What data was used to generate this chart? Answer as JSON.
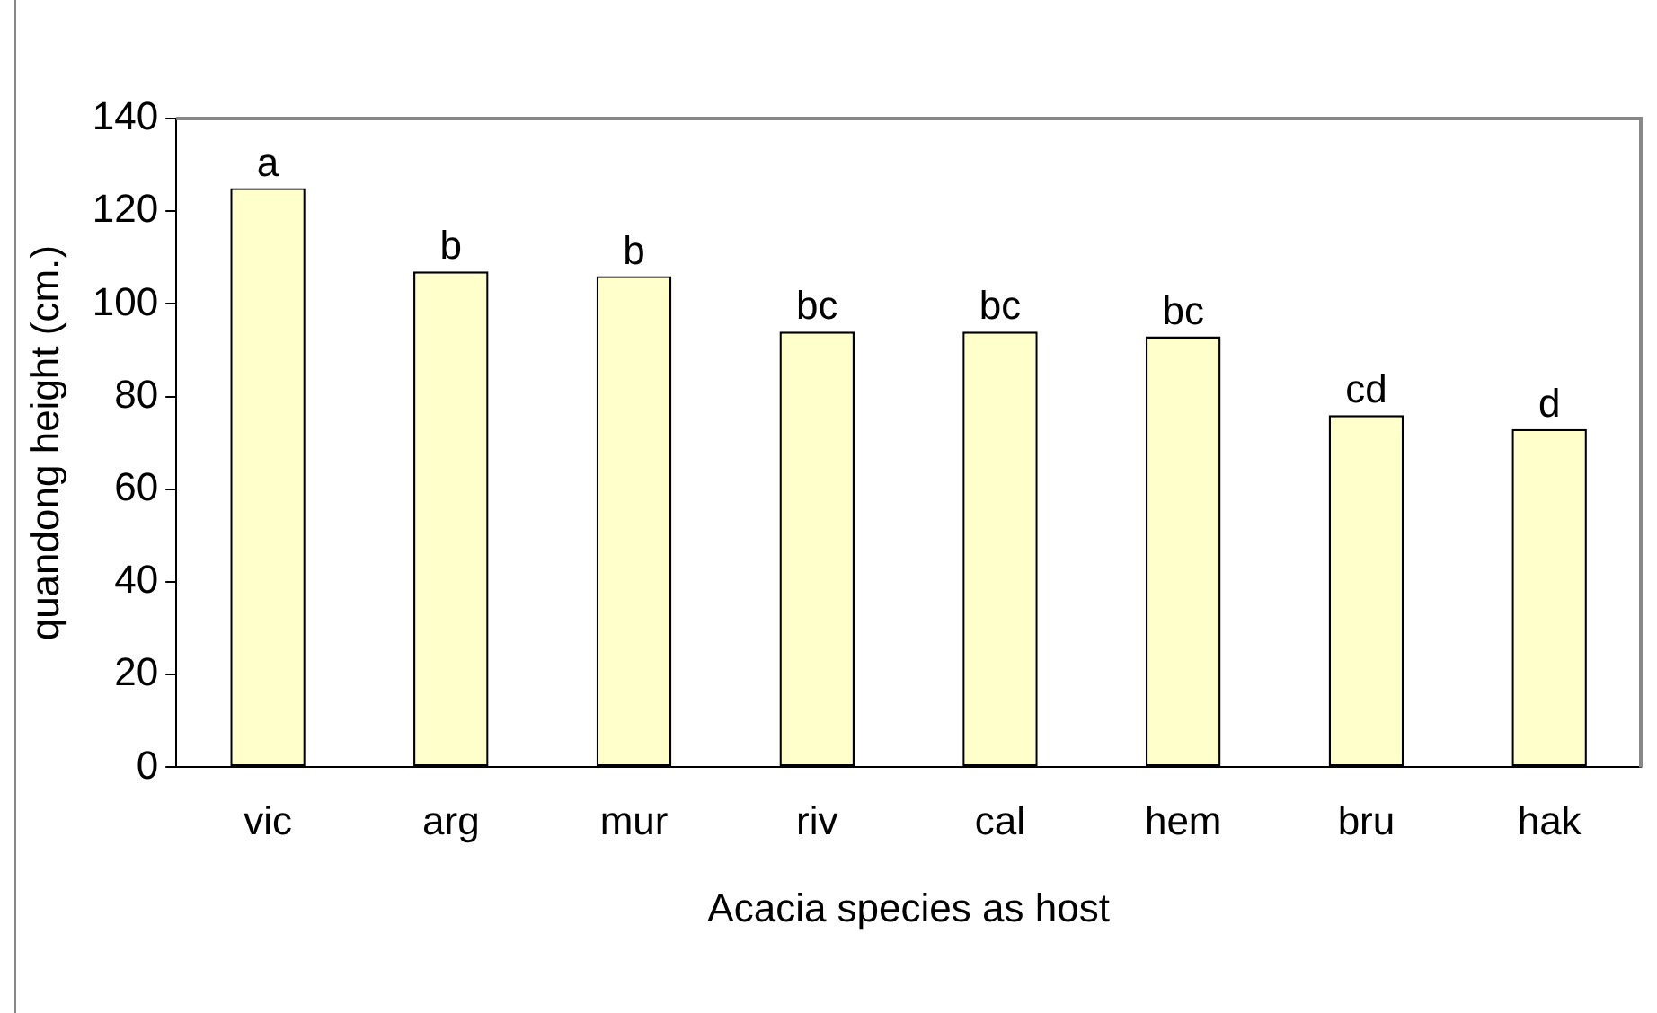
{
  "chart_data": {
    "type": "bar",
    "xlabel": "Acacia species as host",
    "ylabel": "quandong height (cm.)",
    "categories": [
      "vic",
      "arg",
      "mur",
      "riv",
      "cal",
      "hem",
      "bru",
      "hak"
    ],
    "values": [
      125,
      107,
      106,
      94,
      94,
      93,
      76,
      73
    ],
    "color": "#ffffcc",
    "ylim": [
      0,
      140
    ],
    "yticks": [
      0,
      20,
      40,
      60,
      80,
      100,
      120,
      140
    ],
    "grid": false,
    "legend": false,
    "annotations": [
      {
        "text": "a",
        "x": "vic",
        "y": 125
      },
      {
        "text": "b",
        "x": "arg",
        "y": 107
      },
      {
        "text": "b",
        "x": "mur",
        "y": 106
      },
      {
        "text": "bc",
        "x": "riv",
        "y": 94
      },
      {
        "text": "bc",
        "x": "cal",
        "y": 94
      },
      {
        "text": "bc",
        "x": "hem",
        "y": 93
      },
      {
        "text": "cd",
        "x": "bru",
        "y": 76
      },
      {
        "text": "d",
        "x": "hak",
        "y": 73
      }
    ]
  }
}
